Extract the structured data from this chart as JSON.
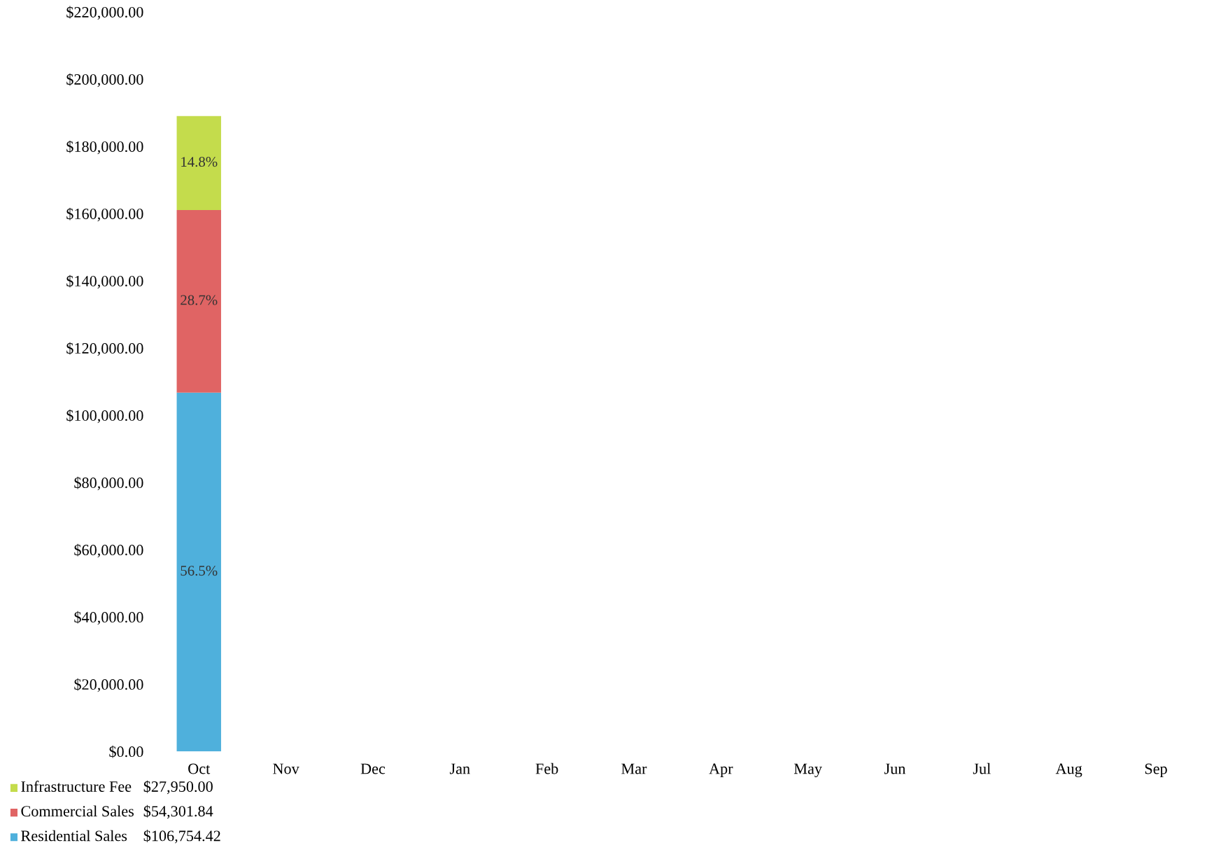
{
  "chart_data": {
    "type": "bar",
    "stacked": true,
    "categories": [
      "Oct",
      "Nov",
      "Dec",
      "Jan",
      "Feb",
      "Mar",
      "Apr",
      "May",
      "Jun",
      "Jul",
      "Aug",
      "Sep"
    ],
    "series": [
      {
        "name": "Residential Sales",
        "color": "#4fb0dc",
        "values": [
          106754.42,
          null,
          null,
          null,
          null,
          null,
          null,
          null,
          null,
          null,
          null,
          null
        ]
      },
      {
        "name": "Commercial Sales",
        "color": "#e06464",
        "values": [
          54301.84,
          null,
          null,
          null,
          null,
          null,
          null,
          null,
          null,
          null,
          null,
          null
        ]
      },
      {
        "name": "Infrastructure Fee",
        "color": "#c4dc4c",
        "values": [
          27950.0,
          null,
          null,
          null,
          null,
          null,
          null,
          null,
          null,
          null,
          null,
          null
        ]
      }
    ],
    "annotations": [
      "$106,754.42",
      "$54,301.84",
      "$27,950.00",
      "56.5%",
      "28.7%",
      "14.8%"
    ],
    "ylim": [
      0,
      220000
    ],
    "yticks": [
      {
        "value": 0,
        "label": "$0.00"
      },
      {
        "value": 20000,
        "label": "$20,000.00"
      },
      {
        "value": 40000,
        "label": "$40,000.00"
      },
      {
        "value": 60000,
        "label": "$60,000.00"
      },
      {
        "value": 80000,
        "label": "$80,000.00"
      },
      {
        "value": 100000,
        "label": "$100,000.00"
      },
      {
        "value": 120000,
        "label": "$120,000.00"
      },
      {
        "value": 140000,
        "label": "$140,000.00"
      },
      {
        "value": 160000,
        "label": "$160,000.00"
      },
      {
        "value": 180000,
        "label": "$180,000.00"
      },
      {
        "value": 200000,
        "label": "$200,000.00"
      },
      {
        "value": 220000,
        "label": "$220,000.00"
      }
    ],
    "grid": false,
    "legend": "bottom left"
  }
}
